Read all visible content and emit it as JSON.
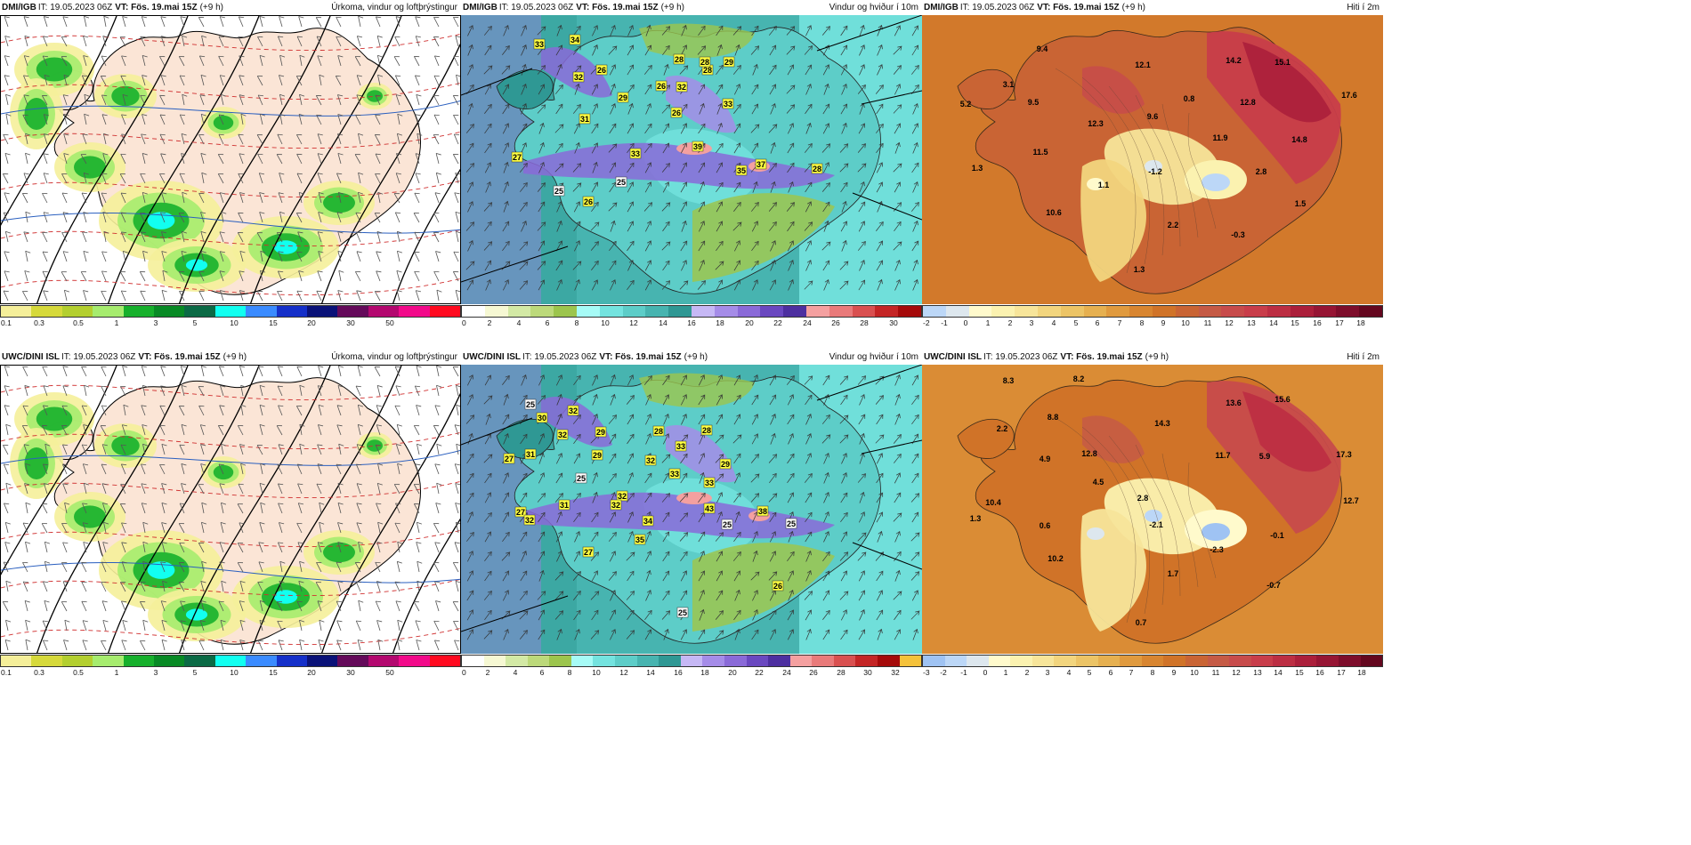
{
  "panels": [
    {
      "id": "p1",
      "source": "DMI/IGB",
      "it": "IT: 19.05.2023 06Z",
      "vt": "VT: Fös. 19.mai 15Z",
      "offset": "(+9 h)",
      "variable": "Úrkoma, vindur og loftþrýstingur",
      "kind": "precip",
      "colorbar": {
        "colors": [
          "#f5ef9a",
          "#d6d93b",
          "#b3cf2f",
          "#a6ec6e",
          "#17b02c",
          "#088a25",
          "#0b6a45",
          "#12fff0",
          "#3a8bff",
          "#1530c9",
          "#0a1278",
          "#640a5a",
          "#b3086f",
          "#f20a8a",
          "#ff0a20"
        ],
        "ticks": [
          "0.1",
          "0.3",
          "0.5",
          "1",
          "3",
          "5",
          "10",
          "15",
          "20",
          "30",
          "50"
        ]
      },
      "labels": []
    },
    {
      "id": "p2",
      "source": "DMI/IGB",
      "it": "IT: 19.05.2023 06Z",
      "vt": "VT: Fös. 19.mai 15Z",
      "offset": "(+9 h)",
      "variable": "Vindur og hviður í 10m",
      "kind": "wind",
      "colorbar": {
        "colors": [
          "#ffffff",
          "#f6f8d3",
          "#d3e9a5",
          "#bcd97a",
          "#9cc54d",
          "#a6fbf6",
          "#74e3df",
          "#5dcdc8",
          "#47b4b0",
          "#2f9894",
          "#c6b8f5",
          "#a58ce8",
          "#8a6ad8",
          "#6a48c0",
          "#4d2fa0",
          "#f4a0a0",
          "#e97a7a",
          "#d95050",
          "#c42525",
          "#a50a0a"
        ],
        "ticks": [
          "0",
          "2",
          "4",
          "6",
          "8",
          "10",
          "12",
          "14",
          "16",
          "18",
          "20",
          "22",
          "24",
          "26",
          "28",
          "30"
        ]
      },
      "labels": [
        "33",
        "34",
        "26",
        "32",
        "26",
        "29",
        "31",
        "26",
        "32",
        "28",
        "28",
        "33",
        "28",
        "29",
        "27",
        "25",
        "33",
        "39",
        "35",
        "37",
        "28",
        "25",
        "26"
      ]
    },
    {
      "id": "p3",
      "source": "DMI/IGB",
      "it": "IT: 19.05.2023 06Z",
      "vt": "VT: Fös. 19.mai 15Z",
      "offset": "(+9 h)",
      "variable": "Hiti í 2m",
      "kind": "temp",
      "colorbar": {
        "colors": [
          "#bcd7f7",
          "#dde7ee",
          "#fffacc",
          "#fbf2b0",
          "#f7e59a",
          "#f2d57e",
          "#ecc466",
          "#e6b050",
          "#e09a3e",
          "#d88530",
          "#d07328",
          "#c96434",
          "#c55a45",
          "#c74b4b",
          "#c83d4a",
          "#bc2e43",
          "#ab1f3b",
          "#961534",
          "#7d0d2b",
          "#64071f"
        ],
        "ticks": [
          "-2",
          "-1",
          "0",
          "1",
          "2",
          "3",
          "4",
          "5",
          "6",
          "7",
          "8",
          "9",
          "10",
          "11",
          "12",
          "13",
          "14",
          "15",
          "16",
          "17",
          "18"
        ]
      },
      "labels": [
        "9.4",
        "3.1",
        "5.2",
        "9.5",
        "12.1",
        "14.2",
        "15.1",
        "17.6",
        "12.3",
        "9.6",
        "0.8",
        "12.8",
        "11.5",
        "11.9",
        "14.8",
        "1.3",
        "1.1",
        "-1.2",
        "2.8",
        "10.6",
        "1.5",
        "2.2",
        "-0.3",
        "1.3"
      ]
    },
    {
      "id": "p4",
      "source": "UWC/DINI ISL",
      "it": "IT: 19.05.2023 06Z",
      "vt": "VT: Fös. 19.mai 15Z",
      "offset": "(+9 h)",
      "variable": "Úrkoma, vindur og loftþrýstingur",
      "kind": "precip",
      "colorbar": {
        "colors": [
          "#f5ef9a",
          "#d6d93b",
          "#b3cf2f",
          "#a6ec6e",
          "#17b02c",
          "#088a25",
          "#0b6a45",
          "#12fff0",
          "#3a8bff",
          "#1530c9",
          "#0a1278",
          "#640a5a",
          "#b3086f",
          "#f20a8a",
          "#ff0a20"
        ],
        "ticks": [
          "0.1",
          "0.3",
          "0.5",
          "1",
          "3",
          "5",
          "10",
          "15",
          "20",
          "30",
          "50"
        ]
      },
      "labels": []
    },
    {
      "id": "p5",
      "source": "UWC/DINI ISL",
      "it": "IT: 19.05.2023 06Z",
      "vt": "VT: Fös. 19.mai 15Z",
      "offset": "(+9 h)",
      "variable": "Vindur og hviður í 10m",
      "kind": "wind",
      "colorbar": {
        "colors": [
          "#ffffff",
          "#f6f8d3",
          "#d3e9a5",
          "#bcd97a",
          "#9cc54d",
          "#a6fbf6",
          "#74e3df",
          "#5dcdc8",
          "#47b4b0",
          "#2f9894",
          "#c6b8f5",
          "#a58ce8",
          "#8a6ad8",
          "#6a48c0",
          "#4d2fa0",
          "#f4a0a0",
          "#e97a7a",
          "#d95050",
          "#c42525",
          "#a50a0a",
          "#f5c23a"
        ],
        "ticks": [
          "0",
          "2",
          "4",
          "6",
          "8",
          "10",
          "12",
          "14",
          "16",
          "18",
          "20",
          "22",
          "24",
          "26",
          "28",
          "30",
          "32"
        ]
      },
      "labels": [
        "25",
        "32",
        "30",
        "32",
        "29",
        "28",
        "27",
        "29",
        "28",
        "33",
        "32",
        "29",
        "31",
        "33",
        "25",
        "32",
        "33",
        "31",
        "32",
        "34",
        "43",
        "35",
        "38",
        "25",
        "27",
        "32",
        "25",
        "27",
        "26",
        "25"
      ]
    },
    {
      "id": "p6",
      "source": "UWC/DINI ISL",
      "it": "IT: 19.05.2023 06Z",
      "vt": "VT: Fös. 19.mai 15Z",
      "offset": "(+9 h)",
      "variable": "Hiti í 2m",
      "kind": "temp",
      "colorbar": {
        "colors": [
          "#9fc3f3",
          "#bcd7f7",
          "#dde7ee",
          "#fffacc",
          "#fbf2b0",
          "#f7e59a",
          "#f2d57e",
          "#ecc466",
          "#e6b050",
          "#e09a3e",
          "#d88530",
          "#d07328",
          "#c96434",
          "#c55a45",
          "#c74b4b",
          "#c83d4a",
          "#bc2e43",
          "#ab1f3b",
          "#961534",
          "#7d0d2b",
          "#64071f"
        ],
        "ticks": [
          "-3",
          "-2",
          "-1",
          "0",
          "1",
          "2",
          "3",
          "4",
          "5",
          "6",
          "7",
          "8",
          "9",
          "10",
          "11",
          "12",
          "13",
          "14",
          "15",
          "16",
          "17",
          "18"
        ]
      },
      "labels": [
        "8.3",
        "8.2",
        "13.6",
        "15.6",
        "2.2",
        "8.8",
        "14.3",
        "12.8",
        "11.7",
        "5.9",
        "17.3",
        "4.9",
        "4.5",
        "2.8",
        "10.4",
        "12.7",
        "1.3",
        "0.6",
        "-2.1",
        "-0.1",
        "-2.3",
        "10.2",
        "1.7",
        "-0.7",
        "0.7"
      ]
    }
  ]
}
